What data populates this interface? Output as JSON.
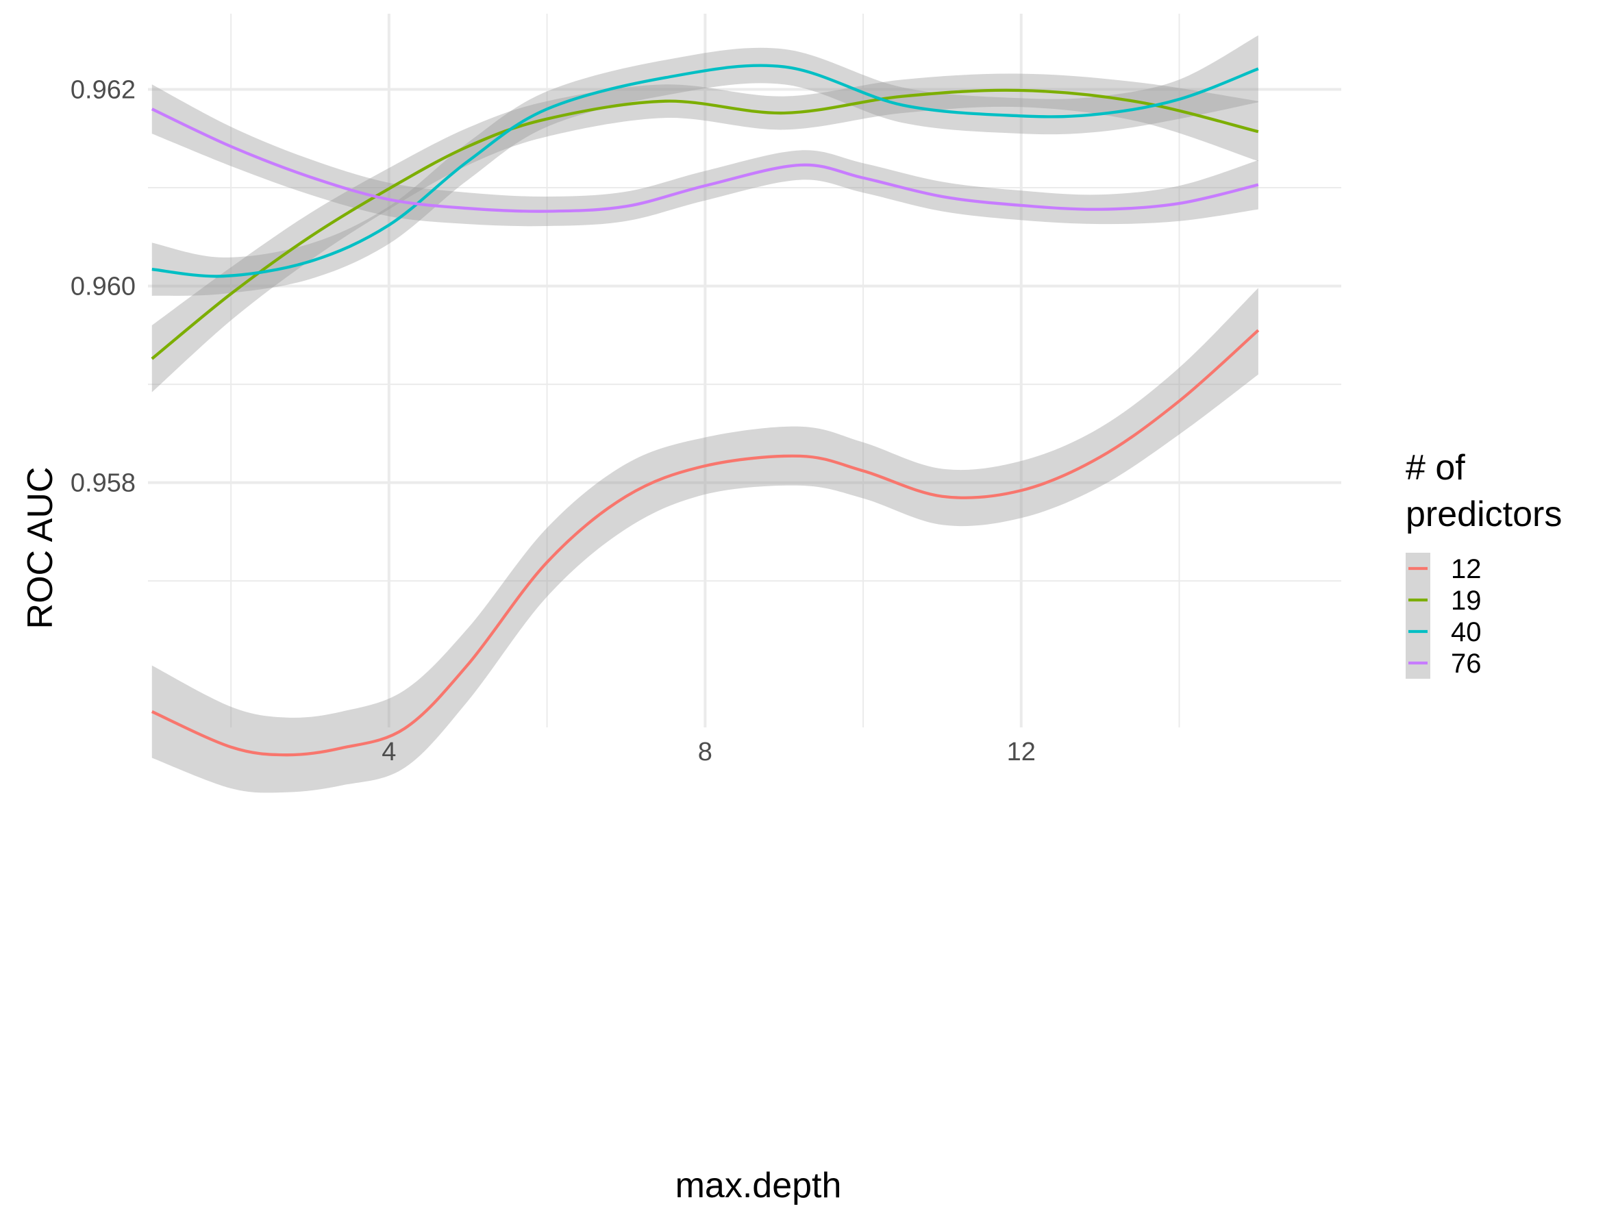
{
  "chart_data": {
    "type": "line",
    "title": "",
    "xlabel": "max.depth",
    "ylabel": "ROC AUC",
    "xlim": [
      0.95,
      16.05
    ],
    "ylim": [
      0.95551,
      0.96277
    ],
    "x_ticks": [
      4,
      8,
      12
    ],
    "y_ticks": [
      0.958,
      0.96,
      0.962
    ],
    "x_tick_labels": [
      "4",
      "8",
      "12"
    ],
    "y_tick_labels": [
      "0.958",
      "0.960",
      "0.962"
    ],
    "grid": true,
    "confidence_band": true,
    "band_color": "#999999",
    "legend": {
      "title_lines": [
        "# of",
        "predictors"
      ],
      "position": "right"
    },
    "series": [
      {
        "name": "12",
        "color": "#F8766D",
        "points": [
          {
            "x": 1.0,
            "y": 0.95567,
            "lo": 0.9552,
            "hi": 0.95614
          },
          {
            "x": 2.0,
            "y": 0.95531,
            "lo": 0.95489,
            "hi": 0.95572
          },
          {
            "x": 2.7,
            "y": 0.95523,
            "lo": 0.95485,
            "hi": 0.95561
          },
          {
            "x": 3.4,
            "y": 0.9553,
            "lo": 0.95492,
            "hi": 0.95567
          },
          {
            "x": 4.2,
            "y": 0.9555,
            "lo": 0.9551,
            "hi": 0.95589
          },
          {
            "x": 5.0,
            "y": 0.95615,
            "lo": 0.95578,
            "hi": 0.95652
          },
          {
            "x": 6.0,
            "y": 0.95719,
            "lo": 0.95684,
            "hi": 0.95754
          },
          {
            "x": 7.0,
            "y": 0.95786,
            "lo": 0.95753,
            "hi": 0.95819
          },
          {
            "x": 8.0,
            "y": 0.95817,
            "lo": 0.95788,
            "hi": 0.95846
          },
          {
            "x": 9.2,
            "y": 0.95827,
            "lo": 0.95797,
            "hi": 0.95857
          },
          {
            "x": 10.0,
            "y": 0.95812,
            "lo": 0.95784,
            "hi": 0.95841
          },
          {
            "x": 11.0,
            "y": 0.95786,
            "lo": 0.95757,
            "hi": 0.95814
          },
          {
            "x": 12.0,
            "y": 0.95792,
            "lo": 0.95764,
            "hi": 0.95822
          },
          {
            "x": 13.0,
            "y": 0.95826,
            "lo": 0.95796,
            "hi": 0.95856
          },
          {
            "x": 14.0,
            "y": 0.95883,
            "lo": 0.95849,
            "hi": 0.95917
          },
          {
            "x": 15.0,
            "y": 0.95955,
            "lo": 0.9591,
            "hi": 0.95998
          }
        ]
      },
      {
        "name": "19",
        "color": "#7CAE00",
        "points": [
          {
            "x": 1.0,
            "y": 0.95926,
            "lo": 0.95892,
            "hi": 0.9596
          },
          {
            "x": 2.0,
            "y": 0.95992,
            "lo": 0.95965,
            "hi": 0.96019
          },
          {
            "x": 3.0,
            "y": 0.9605,
            "lo": 0.96026,
            "hi": 0.96074
          },
          {
            "x": 4.0,
            "y": 0.96099,
            "lo": 0.96078,
            "hi": 0.9612
          },
          {
            "x": 5.0,
            "y": 0.96142,
            "lo": 0.96123,
            "hi": 0.96161
          },
          {
            "x": 6.0,
            "y": 0.9617,
            "lo": 0.96152,
            "hi": 0.96188
          },
          {
            "x": 7.5,
            "y": 0.96188,
            "lo": 0.96171,
            "hi": 0.96205
          },
          {
            "x": 9.0,
            "y": 0.96176,
            "lo": 0.96159,
            "hi": 0.96193
          },
          {
            "x": 10.5,
            "y": 0.96193,
            "lo": 0.96176,
            "hi": 0.9621
          },
          {
            "x": 12.0,
            "y": 0.96199,
            "lo": 0.96182,
            "hi": 0.96216
          },
          {
            "x": 13.5,
            "y": 0.96187,
            "lo": 0.96167,
            "hi": 0.96207
          },
          {
            "x": 15.0,
            "y": 0.96157,
            "lo": 0.96127,
            "hi": 0.96188
          }
        ]
      },
      {
        "name": "40",
        "color": "#00BFC4",
        "points": [
          {
            "x": 1.0,
            "y": 0.96017,
            "lo": 0.9599,
            "hi": 0.96044
          },
          {
            "x": 1.9,
            "y": 0.9601,
            "lo": 0.95992,
            "hi": 0.96029
          },
          {
            "x": 3.0,
            "y": 0.96025,
            "lo": 0.96007,
            "hi": 0.96043
          },
          {
            "x": 4.0,
            "y": 0.96062,
            "lo": 0.96043,
            "hi": 0.96081
          },
          {
            "x": 5.0,
            "y": 0.96127,
            "lo": 0.96108,
            "hi": 0.96146
          },
          {
            "x": 6.0,
            "y": 0.9618,
            "lo": 0.96162,
            "hi": 0.96198
          },
          {
            "x": 7.5,
            "y": 0.96212,
            "lo": 0.96194,
            "hi": 0.9623
          },
          {
            "x": 9.0,
            "y": 0.96223,
            "lo": 0.96205,
            "hi": 0.96241
          },
          {
            "x": 10.5,
            "y": 0.96184,
            "lo": 0.96166,
            "hi": 0.96202
          },
          {
            "x": 12.0,
            "y": 0.96173,
            "lo": 0.96155,
            "hi": 0.96191
          },
          {
            "x": 13.0,
            "y": 0.96175,
            "lo": 0.96157,
            "hi": 0.96193
          },
          {
            "x": 14.0,
            "y": 0.9619,
            "lo": 0.9617,
            "hi": 0.9621
          },
          {
            "x": 15.0,
            "y": 0.96221,
            "lo": 0.96187,
            "hi": 0.96255
          }
        ]
      },
      {
        "name": "76",
        "color": "#C77CFF",
        "points": [
          {
            "x": 1.0,
            "y": 0.9618,
            "lo": 0.96155,
            "hi": 0.96205
          },
          {
            "x": 2.0,
            "y": 0.96142,
            "lo": 0.96122,
            "hi": 0.96162
          },
          {
            "x": 3.0,
            "y": 0.96111,
            "lo": 0.96093,
            "hi": 0.96129
          },
          {
            "x": 4.0,
            "y": 0.96088,
            "lo": 0.96071,
            "hi": 0.96105
          },
          {
            "x": 5.0,
            "y": 0.96079,
            "lo": 0.96063,
            "hi": 0.96095
          },
          {
            "x": 6.0,
            "y": 0.96076,
            "lo": 0.96061,
            "hi": 0.96091
          },
          {
            "x": 7.0,
            "y": 0.96081,
            "lo": 0.96066,
            "hi": 0.96096
          },
          {
            "x": 8.0,
            "y": 0.96102,
            "lo": 0.96087,
            "hi": 0.96117
          },
          {
            "x": 9.2,
            "y": 0.96123,
            "lo": 0.96108,
            "hi": 0.96138
          },
          {
            "x": 10.0,
            "y": 0.9611,
            "lo": 0.96095,
            "hi": 0.96125
          },
          {
            "x": 11.0,
            "y": 0.96091,
            "lo": 0.96076,
            "hi": 0.96106
          },
          {
            "x": 12.0,
            "y": 0.96082,
            "lo": 0.96067,
            "hi": 0.96097
          },
          {
            "x": 13.0,
            "y": 0.96078,
            "lo": 0.96063,
            "hi": 0.96093
          },
          {
            "x": 14.0,
            "y": 0.96084,
            "lo": 0.96066,
            "hi": 0.96102
          },
          {
            "x": 15.0,
            "y": 0.96103,
            "lo": 0.96078,
            "hi": 0.96128
          }
        ]
      }
    ]
  }
}
